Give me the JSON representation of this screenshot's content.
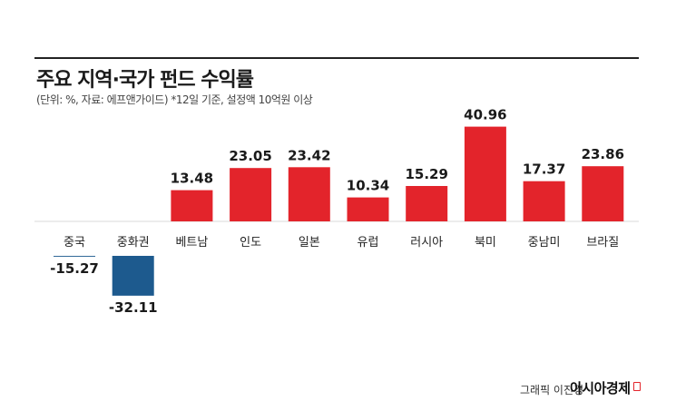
{
  "header": {
    "title": "주요 지역·국가 펀드 수익률",
    "subtitle": "(단위: %, 자료: 에프앤가이드) *12일 기준, 설정액 10억원 이상"
  },
  "footer": {
    "credit": "그래픽 이진경",
    "brand": "아시아경제"
  },
  "colors": {
    "positive": "#e3242b",
    "negative": "#1d5a8e"
  },
  "chart_data": {
    "type": "bar",
    "categories": [
      "중국",
      "중화권",
      "베트남",
      "인도",
      "일본",
      "유럽",
      "러시아",
      "북미",
      "중남미",
      "브라질"
    ],
    "values": [
      -15.27,
      -32.11,
      13.48,
      23.05,
      23.42,
      10.34,
      15.29,
      40.96,
      17.37,
      23.86
    ],
    "labels": [
      "-15.27",
      "-32.11",
      "13.48",
      "23.05",
      "23.42",
      "10.34",
      "15.29",
      "40.96",
      "17.37",
      "23.86"
    ],
    "title": "주요 지역·국가 펀드 수익률",
    "subtitle": "(단위: %, 자료: 에프앤가이드) *12일 기준, 설정액 10억원 이상",
    "grid": false,
    "legend": "none"
  }
}
